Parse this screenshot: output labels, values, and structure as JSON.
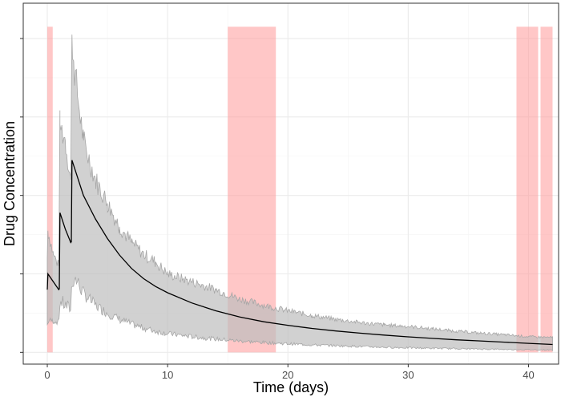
{
  "chart_data": {
    "type": "line",
    "title": "",
    "xlabel": "Time (days)",
    "ylabel": "Drug Concentration",
    "xlim": [
      -2,
      42.5
    ],
    "ylim": [
      -1.5,
      44.5
    ],
    "x_ticks": [
      0,
      10,
      20,
      30,
      40
    ],
    "x_tick_labels": [
      "0",
      "10",
      "20",
      "30",
      "40"
    ],
    "y_ticks": [
      0,
      10,
      20,
      30,
      40
    ],
    "y_tick_labels": [
      "",
      "",
      "",
      "",
      ""
    ],
    "grid": true,
    "legend": "none",
    "colors": {
      "median_line": "#000000",
      "band_fill": "#bebebe",
      "band_stroke": "#a6a6a6",
      "window_fill": "#ff9999",
      "grid_major": "#ebebeb",
      "grid_minor": "#f5f5f5",
      "panel_border": "#333333"
    },
    "shaded_windows": [
      {
        "x_start": 0.0,
        "x_end": 0.45
      },
      {
        "x_start": 15.0,
        "x_end": 19.0
      },
      {
        "x_start": 39.0,
        "x_end": 40.8
      },
      {
        "x_start": 41.0,
        "x_end": 42.0
      }
    ],
    "series": [
      {
        "kind": "median",
        "x": [
          0,
          0.05,
          0.5,
          0.95,
          1.0,
          1.05,
          1.5,
          1.95,
          2.0,
          2.05,
          3,
          4,
          5,
          6,
          7,
          8,
          9,
          10,
          12,
          14,
          16,
          18,
          20,
          22,
          24,
          26,
          28,
          30,
          32,
          34,
          36,
          38,
          40,
          42
        ],
        "y": [
          8.0,
          10.0,
          9.0,
          8.0,
          8.1,
          17.8,
          15.7,
          14.0,
          14.1,
          24.5,
          20.0,
          17.0,
          14.5,
          12.4,
          10.7,
          9.4,
          8.4,
          7.6,
          6.3,
          5.3,
          4.5,
          3.9,
          3.45,
          3.05,
          2.72,
          2.45,
          2.2,
          1.98,
          1.78,
          1.6,
          1.45,
          1.3,
          1.15,
          1.0
        ]
      },
      {
        "kind": "band",
        "x": [
          0,
          0.05,
          0.5,
          0.95,
          1.05,
          1.5,
          1.95,
          2.05,
          2.2,
          2.5,
          3,
          4,
          5,
          6,
          7,
          8,
          9,
          10,
          12,
          14,
          16,
          18,
          20,
          22,
          24,
          26,
          28,
          30,
          32,
          34,
          36,
          38,
          40,
          42
        ],
        "lower": [
          3.5,
          4.0,
          4.0,
          3.8,
          6.5,
          6.0,
          5.5,
          9.0,
          9.5,
          9.0,
          7.5,
          6.0,
          5.0,
          4.2,
          3.6,
          3.1,
          2.7,
          2.4,
          2.0,
          1.7,
          1.45,
          1.25,
          1.1,
          0.95,
          0.85,
          0.75,
          0.65,
          0.58,
          0.52,
          0.47,
          0.42,
          0.38,
          0.34,
          0.3
        ],
        "upper": [
          12.0,
          15.5,
          12.5,
          11.0,
          29.0,
          27.0,
          22.0,
          40.5,
          37.0,
          33.0,
          27.0,
          22.0,
          19.0,
          16.0,
          14.0,
          12.5,
          11.5,
          10.0,
          9.0,
          8.0,
          6.8,
          6.0,
          5.3,
          4.7,
          4.2,
          3.8,
          3.5,
          3.3,
          3.0,
          2.7,
          2.45,
          2.25,
          2.0,
          1.9
        ]
      }
    ]
  }
}
